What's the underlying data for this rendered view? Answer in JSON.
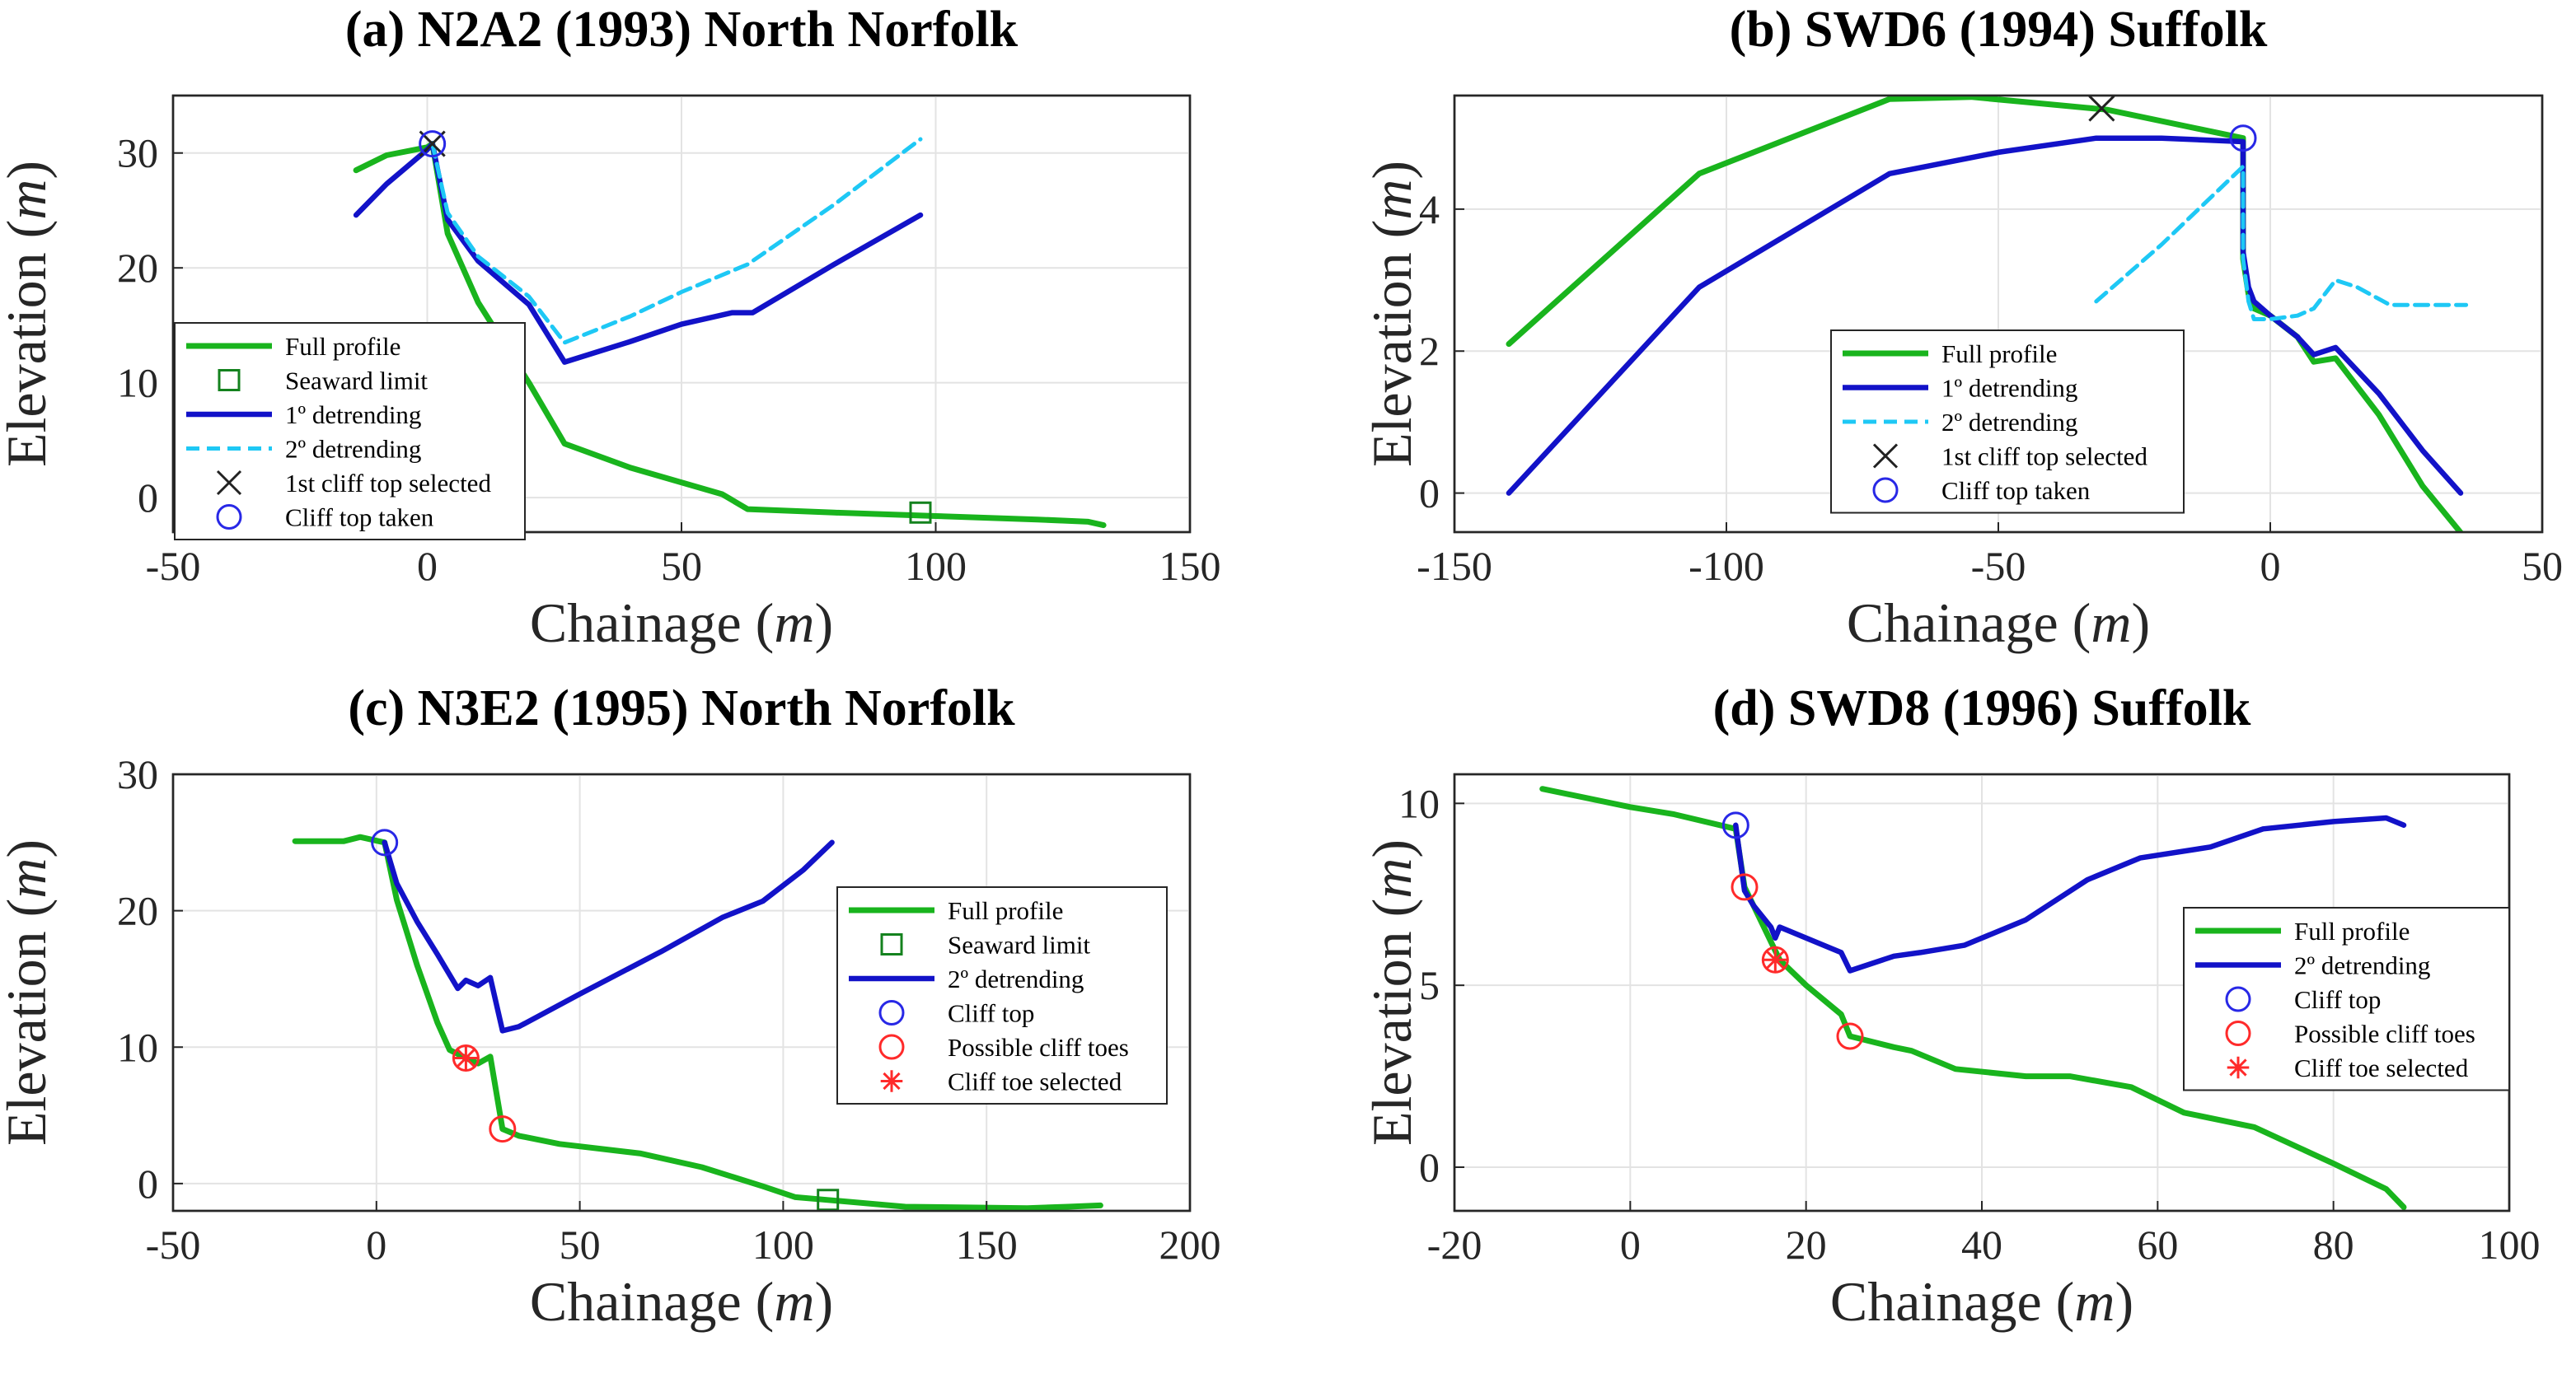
{
  "colors": {
    "full": "#19b41d",
    "det1": "#1212c8",
    "det2": "#1ec8f5",
    "seaward": "#14821e",
    "clifftop": "#2828e6",
    "toe": "#ff2a2a",
    "cross": "#222222"
  },
  "chart_data": [
    {
      "type": "line",
      "title": "(a) N2A2 (1993) North Norfolk",
      "xlabel": "Chainage",
      "xlabel_unit": "m",
      "ylabel": "Elevation",
      "ylabel_unit": "m",
      "xlim": [
        -50,
        150
      ],
      "ylim": [
        -3,
        35
      ],
      "xticks": [
        -50,
        0,
        50,
        100,
        150
      ],
      "yticks": [
        0,
        10,
        20,
        30
      ],
      "grid": true,
      "legend_position": "bottom-left",
      "series": [
        {
          "name": "Full profile",
          "style": "full",
          "x": [
            -14,
            -8,
            0,
            1,
            4,
            10,
            20,
            27,
            40,
            58,
            63,
            80,
            100,
            120,
            130,
            133
          ],
          "y": [
            28.5,
            29.8,
            30.5,
            30.8,
            23,
            17,
            10,
            4.7,
            2.6,
            0.3,
            -1.0,
            -1.3,
            -1.6,
            -1.9,
            -2.1,
            -2.4
          ]
        },
        {
          "name": "1º detrending",
          "style": "det1",
          "x": [
            -14,
            -8,
            -4,
            0,
            1,
            4,
            10,
            20,
            27,
            40,
            50,
            60,
            64,
            80,
            97
          ],
          "y": [
            24.6,
            27.3,
            28.8,
            30.3,
            30.8,
            24.2,
            20.6,
            16.8,
            11.8,
            13.6,
            15.1,
            16.1,
            16.1,
            20.3,
            24.6
          ]
        },
        {
          "name": "2º detrending",
          "style": "det2",
          "x": [
            1,
            4,
            10,
            20,
            27,
            40,
            50,
            63,
            80,
            97
          ],
          "y": [
            30.8,
            24.8,
            21.0,
            17.5,
            13.5,
            15.8,
            17.9,
            20.3,
            25.5,
            31.2
          ]
        },
        {
          "name": "Seaward limit",
          "style": "seaward",
          "marker": "square",
          "x": [
            97
          ],
          "y": [
            -1.3
          ]
        },
        {
          "name": "1st cliff top selected",
          "style": "cross",
          "marker": "x",
          "x": [
            1
          ],
          "y": [
            30.8
          ]
        },
        {
          "name": "Cliff top taken",
          "style": "clifftop",
          "marker": "circle",
          "x": [
            1
          ],
          "y": [
            30.8
          ]
        }
      ],
      "legend": [
        "Full profile",
        "Seaward limit",
        "1º detrending",
        "2º detrending",
        "1st cliff top selected",
        "Cliff top taken"
      ]
    },
    {
      "type": "line",
      "title": "(b) SWD6 (1994) Suffolk",
      "xlabel": "Chainage",
      "xlabel_unit": "m",
      "ylabel": "Elevation",
      "ylabel_unit": "m",
      "xlim": [
        -150,
        50
      ],
      "ylim": [
        -0.55,
        5.6
      ],
      "xticks": [
        -150,
        -100,
        -50,
        0,
        50
      ],
      "yticks": [
        0,
        2,
        4
      ],
      "grid": true,
      "legend_position": "bottom-center",
      "series": [
        {
          "name": "Full profile",
          "style": "full",
          "x": [
            -140,
            -105,
            -70,
            -55,
            -30,
            -5,
            -5,
            -4,
            -3,
            0,
            5,
            8,
            12,
            20,
            28,
            36
          ],
          "y": [
            2.1,
            4.5,
            5.55,
            5.58,
            5.4,
            5.0,
            3.3,
            2.8,
            2.6,
            2.5,
            2.2,
            1.85,
            1.9,
            1.1,
            0.1,
            -0.65
          ]
        },
        {
          "name": "1º detrending",
          "style": "det1",
          "x": [
            -140,
            -105,
            -70,
            -50,
            -32,
            -20,
            -5,
            -5,
            -4,
            -3,
            0,
            5,
            8,
            12,
            20,
            28,
            35
          ],
          "y": [
            0.0,
            2.9,
            4.5,
            4.8,
            5.0,
            5.0,
            4.95,
            3.4,
            2.9,
            2.7,
            2.5,
            2.2,
            1.95,
            2.05,
            1.4,
            0.6,
            0.0
          ]
        },
        {
          "name": "2º detrending",
          "style": "det2",
          "x": [
            -32,
            -20,
            -5,
            -5,
            -4,
            -3,
            0,
            5,
            8,
            12,
            16,
            22,
            28,
            36
          ],
          "y": [
            2.7,
            3.5,
            4.6,
            3.3,
            2.7,
            2.45,
            2.45,
            2.5,
            2.6,
            3.0,
            2.9,
            2.65,
            2.65,
            2.65
          ]
        },
        {
          "name": "1st cliff top selected",
          "style": "cross",
          "marker": "x",
          "x": [
            -31
          ],
          "y": [
            5.42
          ]
        },
        {
          "name": "Cliff top taken",
          "style": "clifftop",
          "marker": "circle",
          "x": [
            -5
          ],
          "y": [
            5.0
          ]
        }
      ],
      "legend": [
        "Full profile",
        "1º detrending",
        "2º detrending",
        "1st cliff top selected",
        "Cliff top taken"
      ]
    },
    {
      "type": "line",
      "title": "(c) N3E2 (1995) North Norfolk",
      "xlabel": "Chainage",
      "xlabel_unit": "m",
      "ylabel": "Elevation",
      "ylabel_unit": "m",
      "xlim": [
        -50,
        200
      ],
      "ylim": [
        -2,
        30
      ],
      "xticks": [
        -50,
        0,
        50,
        100,
        150,
        200
      ],
      "yticks": [
        0,
        10,
        20,
        30
      ],
      "grid": true,
      "legend_position": "middle-right",
      "series": [
        {
          "name": "Full profile",
          "style": "full",
          "x": [
            -20,
            -8,
            -4,
            2,
            5,
            10,
            15,
            18,
            22,
            25,
            28,
            31,
            35,
            45,
            65,
            80,
            95,
            103,
            111,
            130,
            160,
            170,
            178
          ],
          "y": [
            25.1,
            25.1,
            25.4,
            25.0,
            20.8,
            16.0,
            11.8,
            9.8,
            9.2,
            8.8,
            9.3,
            4.0,
            3.5,
            2.9,
            2.2,
            1.2,
            -0.2,
            -1.0,
            -1.2,
            -1.7,
            -1.8,
            -1.7,
            -1.6
          ]
        },
        {
          "name": "2º detrending",
          "style": "det1",
          "x": [
            2,
            5,
            10,
            15,
            20,
            22,
            25,
            28,
            31,
            35,
            50,
            70,
            85,
            95,
            105,
            112
          ],
          "y": [
            25.0,
            22.0,
            19.2,
            16.8,
            14.3,
            14.9,
            14.5,
            15.1,
            11.2,
            11.5,
            13.9,
            17.0,
            19.5,
            20.7,
            23.0,
            25.0
          ]
        },
        {
          "name": "Seaward limit",
          "style": "seaward",
          "marker": "square",
          "x": [
            111
          ],
          "y": [
            -1.2
          ]
        },
        {
          "name": "Cliff top",
          "style": "clifftop",
          "marker": "circle",
          "x": [
            2
          ],
          "y": [
            25.0
          ]
        },
        {
          "name": "Possible cliff toes",
          "style": "toe",
          "marker": "circle",
          "x": [
            22,
            31
          ],
          "y": [
            9.2,
            4.0
          ]
        },
        {
          "name": "Cliff toe selected",
          "style": "toe",
          "marker": "asterisk",
          "x": [
            22
          ],
          "y": [
            9.2
          ]
        }
      ],
      "legend": [
        "Full profile",
        "Seaward limit",
        "2º detrending",
        "Cliff top",
        "Possible cliff toes",
        "Cliff toe selected"
      ]
    },
    {
      "type": "line",
      "title": "(d) SWD8 (1996) Suffolk",
      "xlabel": "Chainage",
      "xlabel_unit": "m",
      "ylabel": "Elevation",
      "ylabel_unit": "m",
      "xlim": [
        -20,
        100
      ],
      "ylim": [
        -1.2,
        10.8
      ],
      "xticks": [
        -20,
        0,
        20,
        40,
        60,
        80,
        100
      ],
      "yticks": [
        0,
        5,
        10
      ],
      "grid": true,
      "legend_position": "middle-right",
      "series": [
        {
          "name": "Full profile",
          "style": "full",
          "x": [
            -10,
            0,
            5,
            12,
            13,
            14,
            16,
            17,
            20,
            24,
            25,
            30,
            32,
            37,
            45,
            50,
            57,
            63,
            71,
            80,
            86,
            88
          ],
          "y": [
            10.4,
            9.9,
            9.7,
            9.3,
            7.7,
            7.2,
            6.2,
            5.7,
            5.0,
            4.2,
            3.6,
            3.3,
            3.2,
            2.7,
            2.5,
            2.5,
            2.2,
            1.5,
            1.1,
            0.1,
            -0.6,
            -1.1
          ]
        },
        {
          "name": "2º detrending",
          "style": "det1",
          "x": [
            12,
            13,
            14,
            16,
            16.5,
            17,
            18,
            23,
            24,
            25,
            30,
            33,
            38,
            45,
            52,
            58,
            66,
            72,
            80,
            86,
            88
          ],
          "y": [
            9.4,
            7.6,
            7.2,
            6.6,
            6.3,
            6.6,
            6.5,
            6.0,
            5.9,
            5.4,
            5.8,
            5.9,
            6.1,
            6.8,
            7.9,
            8.5,
            8.8,
            9.3,
            9.5,
            9.6,
            9.4
          ]
        },
        {
          "name": "Cliff top",
          "style": "clifftop",
          "marker": "circle",
          "x": [
            12
          ],
          "y": [
            9.4
          ]
        },
        {
          "name": "Possible cliff toes",
          "style": "toe",
          "marker": "circle",
          "x": [
            13,
            16.5,
            25
          ],
          "y": [
            7.7,
            5.7,
            3.6
          ]
        },
        {
          "name": "Cliff toe selected",
          "style": "toe",
          "marker": "asterisk",
          "x": [
            16.5
          ],
          "y": [
            5.7
          ]
        }
      ],
      "legend": [
        "Full profile",
        "2º detrending",
        "Cliff top",
        "Possible cliff toes",
        "Cliff toe selected"
      ]
    }
  ]
}
